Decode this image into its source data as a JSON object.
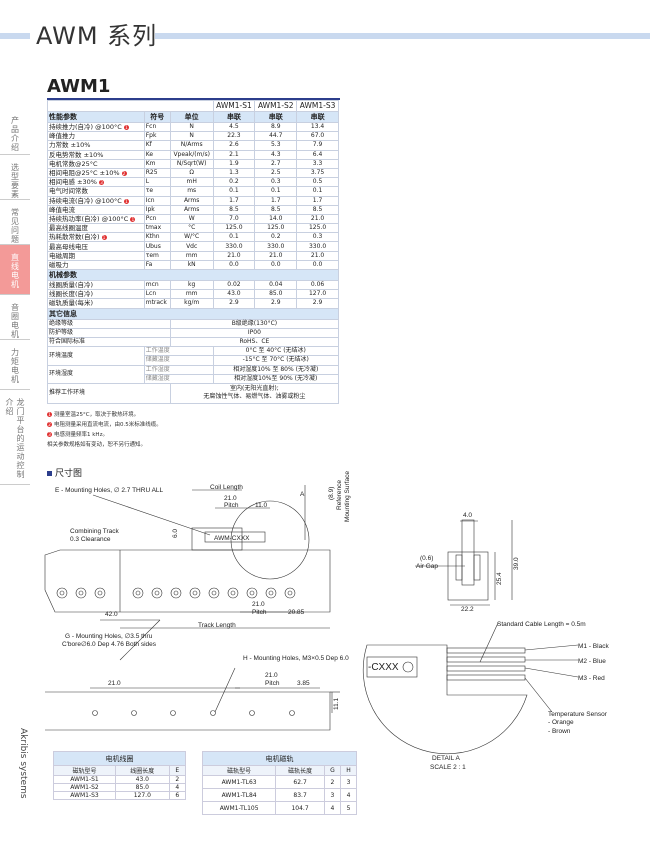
{
  "header": {
    "title": "AWM 系列",
    "model": "AWM1"
  },
  "sidebar": {
    "items": [
      {
        "label": "产品介绍"
      },
      {
        "label": "选型要素"
      },
      {
        "label": "常见问题"
      },
      {
        "label": "直线电机",
        "active": true
      },
      {
        "label": "音圈电机"
      },
      {
        "label": "力矩电机"
      },
      {
        "label": "龙门平台的运动控制介绍"
      }
    ],
    "active_color": "#f39a98"
  },
  "brand": "Akribis systems",
  "spec": {
    "columns": [
      "AWM1-S1",
      "AWM1-S2",
      "AWM1-S3"
    ],
    "perf_header": {
      "name": "性能参数",
      "symbol": "符号",
      "unit": "单位",
      "conn": [
        "串联",
        "串联",
        "串联"
      ]
    },
    "perf_rows": [
      {
        "name": "持续推力(自冷) @100°C",
        "note": "1",
        "symbol": "Fcn",
        "unit": "N",
        "values": [
          "4.5",
          "8.9",
          "13.4"
        ]
      },
      {
        "name": "峰值推力",
        "symbol": "Fpk",
        "unit": "N",
        "values": [
          "22.3",
          "44.7",
          "67.0"
        ]
      },
      {
        "name": "力常数 ±10%",
        "symbol": "Kf",
        "unit": "N/Arms",
        "values": [
          "2.6",
          "5.3",
          "7.9"
        ]
      },
      {
        "name": "反电势常数 ±10%",
        "symbol": "Ke",
        "unit": "Vpeak/(m/s)",
        "values": [
          "2.1",
          "4.3",
          "6.4"
        ]
      },
      {
        "name": "电机常数@25°C",
        "symbol": "Km",
        "unit": "N/Sqrt(W)",
        "values": [
          "1.9",
          "2.7",
          "3.3"
        ]
      },
      {
        "name": "相间电阻@25°C ±10%",
        "note": "2",
        "symbol": "R25",
        "unit": "Ω",
        "values": [
          "1.3",
          "2.5",
          "3.75"
        ]
      },
      {
        "name": "相间电感 ±30%",
        "note": "3",
        "symbol": "L",
        "unit": "mH",
        "values": [
          "0.2",
          "0.3",
          "0.5"
        ]
      },
      {
        "name": "电气时间常数",
        "symbol": "τe",
        "unit": "ms",
        "values": [
          "0.1",
          "0.1",
          "0.1"
        ]
      },
      {
        "name": "持续电流(自冷) @100°C",
        "note": "1",
        "symbol": "Icn",
        "unit": "Arms",
        "values": [
          "1.7",
          "1.7",
          "1.7"
        ]
      },
      {
        "name": "峰值电流",
        "symbol": "Ipk",
        "unit": "Arms",
        "values": [
          "8.5",
          "8.5",
          "8.5"
        ]
      },
      {
        "name": "持续热功率(自冷) @100°C",
        "note": "1",
        "symbol": "Pcn",
        "unit": "W",
        "values": [
          "7.0",
          "14.0",
          "21.0"
        ]
      },
      {
        "name": "最高线圈温度",
        "symbol": "tmax",
        "unit": "°C",
        "values": [
          "125.0",
          "125.0",
          "125.0"
        ]
      },
      {
        "name": "热耗散常数(自冷)",
        "note": "1",
        "symbol": "Kthn",
        "unit": "W/°C",
        "values": [
          "0.1",
          "0.2",
          "0.3"
        ]
      },
      {
        "name": "最高母线电压",
        "symbol": "Ubus",
        "unit": "Vdc",
        "values": [
          "330.0",
          "330.0",
          "330.0"
        ]
      },
      {
        "name": "电磁周期",
        "symbol": "τem",
        "unit": "mm",
        "values": [
          "21.0",
          "21.0",
          "21.0"
        ]
      },
      {
        "name": "磁吸力",
        "symbol": "Fa",
        "unit": "kN",
        "values": [
          "0.0",
          "0.0",
          "0.0"
        ]
      }
    ],
    "mech_header": "机械参数",
    "mech_rows": [
      {
        "name": "线圈质量(自冷)",
        "symbol": "mcn",
        "unit": "kg",
        "values": [
          "0.02",
          "0.04",
          "0.06"
        ]
      },
      {
        "name": "线圈长度(自冷)",
        "symbol": "Lcn",
        "unit": "mm",
        "values": [
          "43.0",
          "85.0",
          "127.0"
        ]
      },
      {
        "name": "磁轨质量(每米)",
        "symbol": "mtrack",
        "unit": "kg/m",
        "values": [
          "2.9",
          "2.9",
          "2.9"
        ]
      }
    ],
    "other_header": "其它信息",
    "other_rows": [
      {
        "name": "绝缘等级",
        "value": "B级绝缘(130°C)"
      },
      {
        "name": "防护等级",
        "value": "IP00"
      },
      {
        "name": "符合国际标准",
        "value": "RoHS、CE"
      },
      {
        "name": "环境温度",
        "sub": [
          {
            "label": "工作温度",
            "value": "0°C 至 40°C (无结冰)"
          },
          {
            "label": "储藏温度",
            "value": "-15°C 至 70°C (无结冰)"
          }
        ]
      },
      {
        "name": "环境湿度",
        "sub": [
          {
            "label": "工作湿度",
            "value": "相对湿度10% 至 80% (无冷凝)"
          },
          {
            "label": "储藏湿度",
            "value": "相对湿度10%至 90% (无冷凝)"
          }
        ]
      },
      {
        "name": "推荐工作环境",
        "value": "室内(无阳光直射);",
        "value2": "无腐蚀性气体、易燃气体、油雾或粉尘"
      }
    ]
  },
  "notes": [
    {
      "n": "1",
      "text": "测量室温25°C，取决于散热环境。"
    },
    {
      "n": "2",
      "text": "电阻测量采用直流电流，由0.5米标准线缆。"
    },
    {
      "n": "3",
      "text": "电感测量频率1 kHz。"
    },
    {
      "n": "",
      "text": "相关参数规格如有变动，恕不另行通知。"
    }
  ],
  "drawing": {
    "title": "尺寸图",
    "labels": {
      "e_holes": "E - Mounting Holes, ∅ 2.7 THRU ALL",
      "coil_length": "Coil Length",
      "pitch_val": "21.0",
      "pitch": "Pitch",
      "d11": "11.0",
      "detail": "A",
      "ref": "(8.9)",
      "ref2": "Reference",
      "ref3": "Mounting Surface",
      "combining": "Combining Track",
      "clearance": "0.3 Clearance",
      "d6": "6.0",
      "coil_label": "AWM-CXXX",
      "d42": "42.0",
      "d2085": "20.85",
      "track_length": "Track Length",
      "g_holes": "G - Mounting Holes, ∅3.5 thru",
      "g_holes2": "C'bore∅6.0 Dep 4.76 Both sides",
      "h_holes": "H - Mounting Holes, M3×0.5 Dep 6.0",
      "d21": "21.0",
      "d385": "3.85",
      "d111": "11.1",
      "d4": "4.0",
      "airgap_v": "(0.6)",
      "airgap": "Air Gap",
      "d254": "25.4",
      "d39": "39.0",
      "d222": "22.2",
      "cable": "Standard Cable Length = 0.5m",
      "m1": "M1 - Black",
      "m2": "M2 - Blue",
      "m3": "M3 - Red",
      "temp": "Temperature Sensor",
      "orange": "- Orange",
      "brown": "- Brown",
      "cxxx": "-CXXX",
      "detail_a": "DETAIL A",
      "scale": "SCALE 2 : 1"
    }
  },
  "coil_table": {
    "title": "电机线圈",
    "headers": [
      "磁轨型号",
      "线圈长度",
      "E"
    ],
    "rows": [
      [
        "AWM1-S1",
        "43.0",
        "2"
      ],
      [
        "AWM1-S2",
        "85.0",
        "4"
      ],
      [
        "AWM1-S3",
        "127.0",
        "6"
      ]
    ]
  },
  "track_table": {
    "title": "电机磁轨",
    "headers": [
      "磁轨型号",
      "磁轨长度",
      "G",
      "H"
    ],
    "rows": [
      [
        "AWM1-TL63",
        "62.7",
        "2",
        "3"
      ],
      [
        "AWM1-TL84",
        "83.7",
        "3",
        "4"
      ],
      [
        "AWM1-TL105",
        "104.7",
        "4",
        "5"
      ]
    ]
  }
}
